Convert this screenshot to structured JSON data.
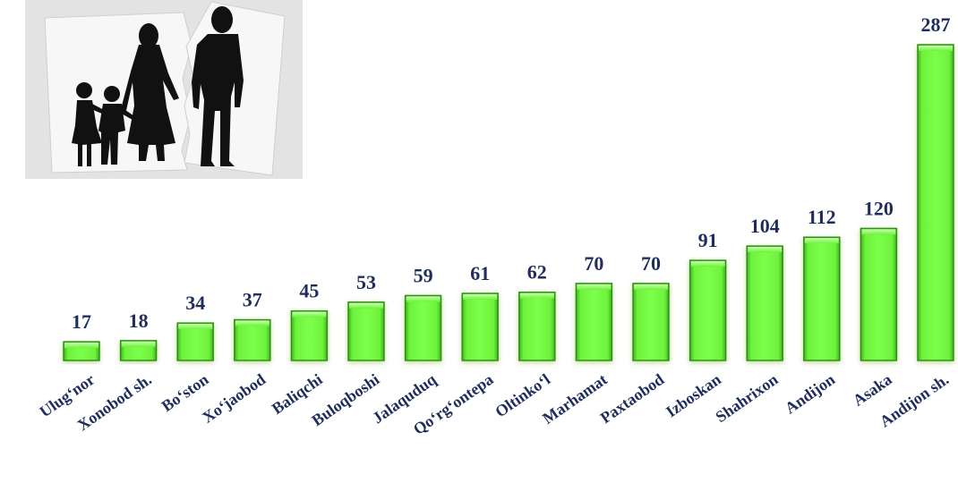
{
  "chart_data": {
    "type": "bar",
    "title": "",
    "xlabel": "",
    "ylabel": "",
    "categories": [
      "Ulug‘nor",
      "Xonobod sh.",
      "Bo‘ston",
      "Xo‘jaobod",
      "Baliqchi",
      "Buloqboshi",
      "Jalaquduq",
      "Qo‘rg‘ontepa",
      "Oltinko‘l",
      "Marhamat",
      "Paxtaobod",
      "Izboskan",
      "Shahrixon",
      "Andijon",
      "Asaka",
      "Andijon sh."
    ],
    "values": [
      17,
      18,
      34,
      37,
      45,
      53,
      59,
      61,
      62,
      70,
      70,
      91,
      104,
      112,
      120,
      287
    ],
    "ylim": [
      0,
      287
    ],
    "grid": false,
    "legend": "none",
    "bar_color": "#5fef36",
    "bar_edge_color": "#2f8f14",
    "label_color": "#1f2d5c"
  },
  "illustration": {
    "icon": "family-split-photo-icon",
    "background_color": "#e3e3e3",
    "silhouette_color": "#111111"
  }
}
